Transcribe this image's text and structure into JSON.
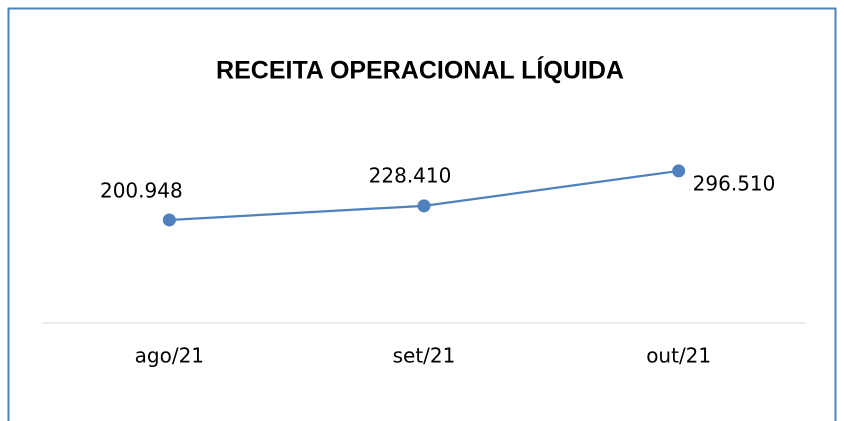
{
  "chart_data": {
    "type": "line",
    "title": "RECEITA OPERACIONAL LÍQUIDA",
    "categories": [
      "ago/21",
      "set/21",
      "out/21"
    ],
    "series": [
      {
        "name": "Receita Operacional Líquida",
        "color": "#4f81bd",
        "values": [
          200948,
          228410,
          296510
        ],
        "value_labels": [
          "200.948",
          "228.410",
          "296.510"
        ]
      }
    ],
    "ylim": [
      0,
      350000
    ]
  }
}
